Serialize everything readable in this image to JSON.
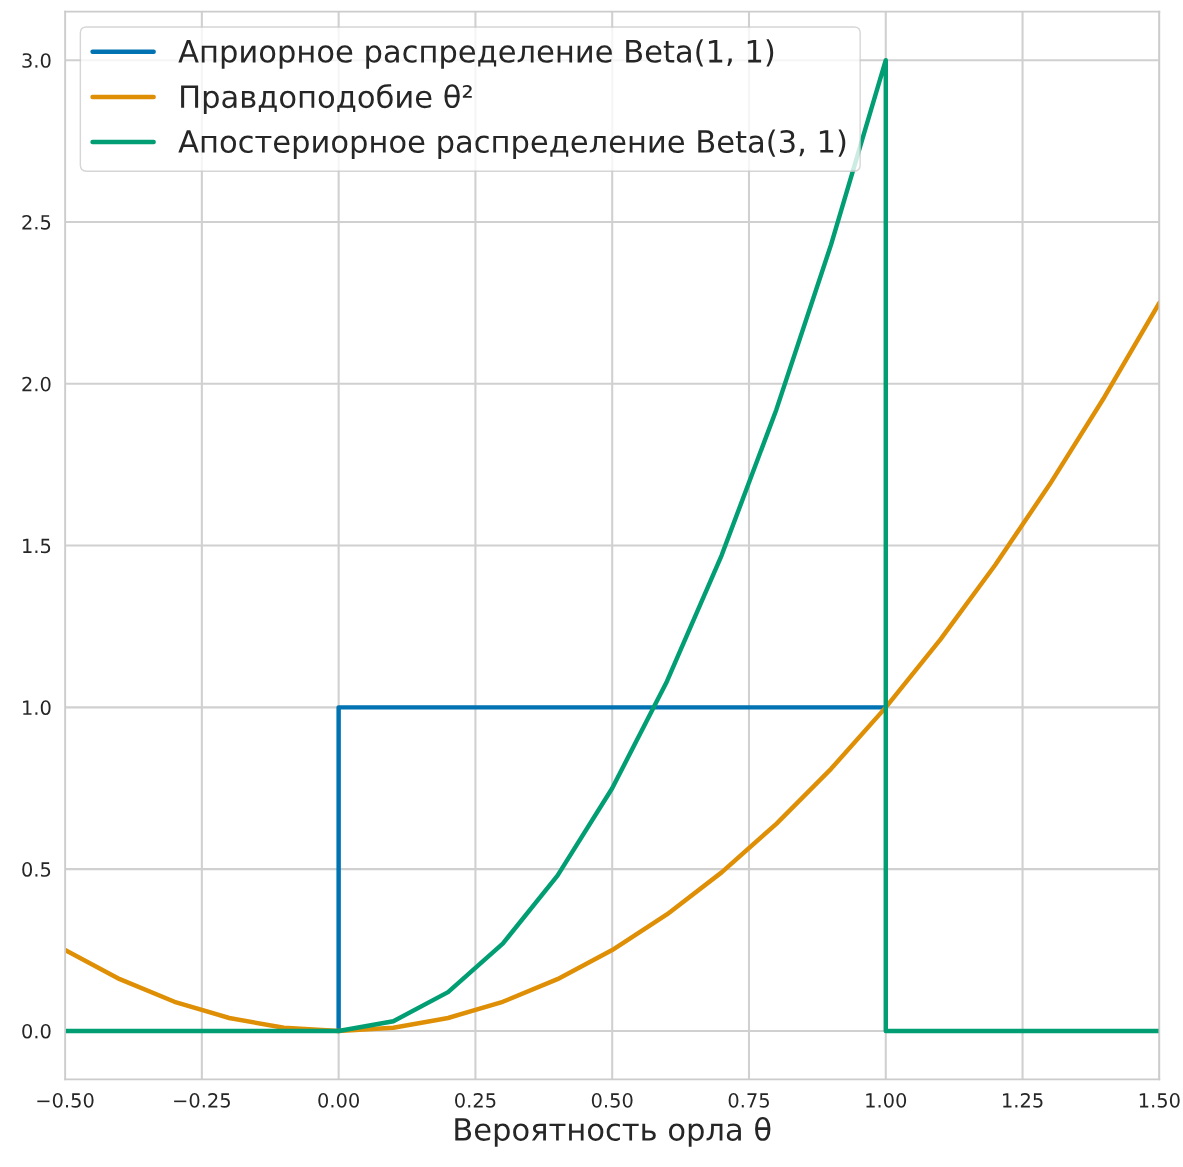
{
  "chart_data": {
    "type": "line",
    "xlabel": "Вероятность орла θ",
    "xlim": [
      -0.5,
      1.5
    ],
    "ylim": [
      -0.15,
      3.15
    ],
    "xticks": [
      {
        "value": -0.5,
        "label": "−0.50"
      },
      {
        "value": -0.25,
        "label": "−0.25"
      },
      {
        "value": 0,
        "label": "0.00"
      },
      {
        "value": 0.25,
        "label": "0.25"
      },
      {
        "value": 0.5,
        "label": "0.50"
      },
      {
        "value": 0.75,
        "label": "0.75"
      },
      {
        "value": 1,
        "label": "1.00"
      },
      {
        "value": 1.25,
        "label": "1.25"
      },
      {
        "value": 1.5,
        "label": "1.50"
      }
    ],
    "yticks": [
      {
        "value": 0,
        "label": "0.0"
      },
      {
        "value": 0.5,
        "label": "0.5"
      },
      {
        "value": 1,
        "label": "1.0"
      },
      {
        "value": 1.5,
        "label": "1.5"
      },
      {
        "value": 2,
        "label": "2.0"
      },
      {
        "value": 2.5,
        "label": "2.5"
      },
      {
        "value": 3,
        "label": "3.0"
      }
    ],
    "grid": true,
    "legend": "top left",
    "marker": "none",
    "line_style": "solid",
    "series": [
      {
        "name": "Априорное распределение Beta(1, 1)",
        "color": "#0173b2",
        "x": [
          0,
          0,
          1
        ],
        "values": [
          0,
          1,
          1
        ]
      },
      {
        "name": "Правдоподобие θ²",
        "color": "#de8f05",
        "x": [
          -0.5,
          -0.4,
          -0.3,
          -0.2,
          -0.1,
          0,
          0.1,
          0.2,
          0.3,
          0.4,
          0.5,
          0.6,
          0.7,
          0.8,
          0.9,
          1.0,
          1.1,
          1.2,
          1.3,
          1.4,
          1.5
        ],
        "values": [
          0.25,
          0.16,
          0.09,
          0.04,
          0.01,
          0,
          0.01,
          0.04,
          0.09,
          0.16,
          0.25,
          0.36,
          0.49,
          0.64,
          0.81,
          1.0,
          1.21,
          1.44,
          1.69,
          1.96,
          2.25
        ]
      },
      {
        "name": "Апостериорное распределение Beta(3, 1)",
        "color": "#029e73",
        "x": [
          -0.5,
          0,
          0.1,
          0.2,
          0.3,
          0.4,
          0.5,
          0.6,
          0.7,
          0.8,
          0.9,
          1.0,
          1.0,
          1.5
        ],
        "values": [
          0,
          0,
          0.03,
          0.12,
          0.27,
          0.48,
          0.75,
          1.08,
          1.47,
          1.92,
          2.43,
          3.0,
          0,
          0
        ]
      }
    ]
  }
}
